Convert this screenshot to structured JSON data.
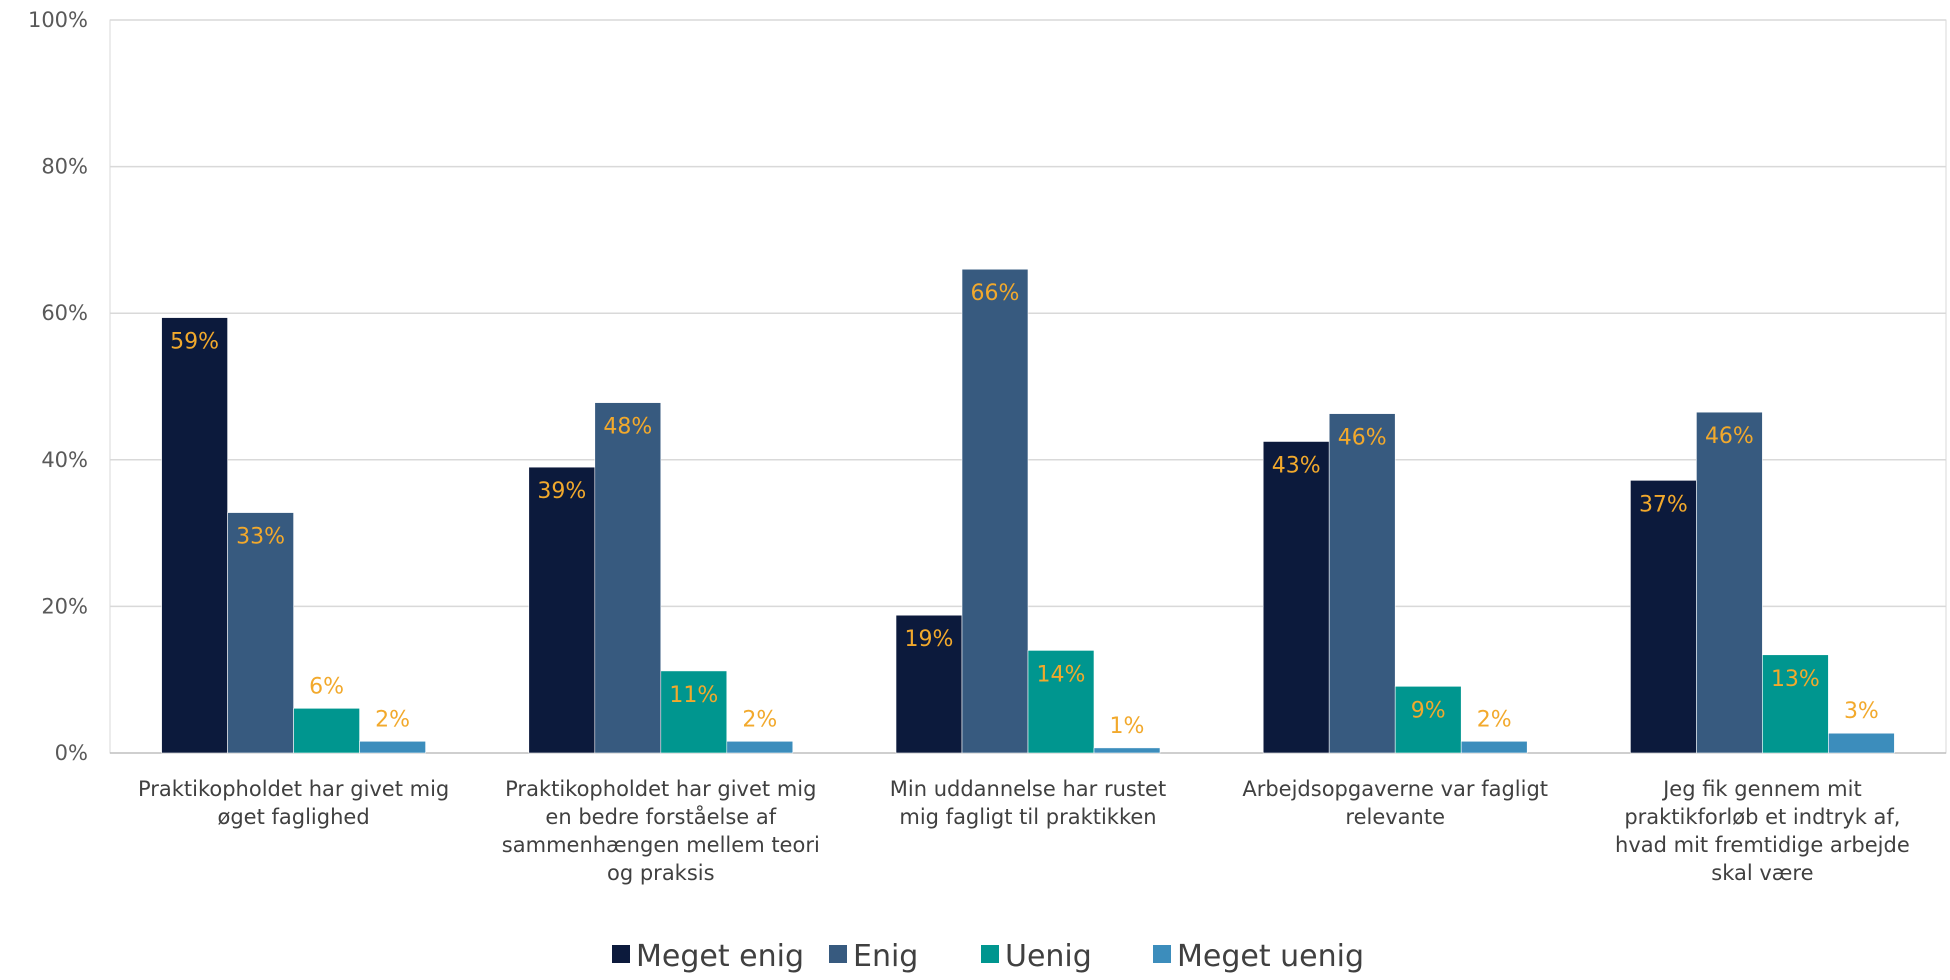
{
  "chart_data": {
    "type": "bar",
    "title": "",
    "xlabel": "",
    "ylabel": "",
    "ylim": [
      0,
      1
    ],
    "y_ticks": [
      "0%",
      "20%",
      "40%",
      "60%",
      "80%",
      "100%"
    ],
    "grid": true,
    "legend_position": "bottom",
    "categories": [
      [
        "Praktikopholdet har givet mig",
        "øget faglighed"
      ],
      [
        "Praktikopholdet har givet mig",
        "en bedre forståelse af",
        "sammenhængen mellem teori",
        "og praksis"
      ],
      [
        "Min uddannelse har rustet",
        "mig fagligt til praktikken"
      ],
      [
        "Arbejdsopgaverne var fagligt",
        "relevante"
      ],
      [
        "Jeg fik gennem mit",
        "praktikforløb et indtryk af,",
        "hvad mit fremtidige arbejde",
        "skal være"
      ]
    ],
    "series": [
      {
        "name": "Meget enig",
        "color": "#0C1A3C",
        "values": [
          0.594,
          0.39,
          0.188,
          0.425,
          0.372
        ],
        "labels": [
          "59%",
          "39%",
          "19%",
          "43%",
          "37%"
        ]
      },
      {
        "name": "Enig",
        "color": "#375A7F",
        "values": [
          0.328,
          0.478,
          0.66,
          0.463,
          0.465
        ],
        "labels": [
          "33%",
          "48%",
          "66%",
          "46%",
          "46%"
        ]
      },
      {
        "name": "Uenig",
        "color": "#00968F",
        "values": [
          0.061,
          0.112,
          0.14,
          0.091,
          0.134
        ],
        "labels": [
          "6%",
          "11%",
          "14%",
          "9%",
          "13%"
        ]
      },
      {
        "name": "Meget uenig",
        "color": "#3C8DBC",
        "values": [
          0.016,
          0.016,
          0.007,
          0.016,
          0.027
        ],
        "labels": [
          "2%",
          "2%",
          "1%",
          "2%",
          "3%"
        ]
      }
    ]
  }
}
